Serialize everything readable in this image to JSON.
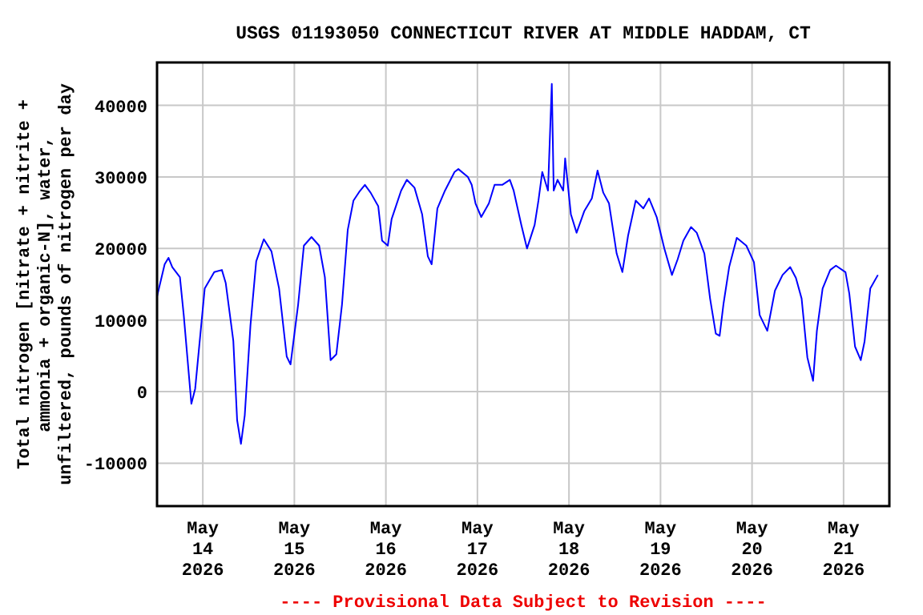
{
  "chart_data": {
    "type": "line",
    "title": "USGS 01193050 CONNECTICUT RIVER AT MIDDLE HADDAM, CT",
    "ylabel": "Total nitrogen [nitrate + nitrite +\nammonia + organic-N], water,\nunfiltered, pounds of nitrogen per day",
    "annotations": [
      "---- Provisional Data Subject to Revision ----"
    ],
    "x": [
      "2026-05-13T12:00",
      "2026-05-13T14:00",
      "2026-05-13T15:00",
      "2026-05-13T16:00",
      "2026-05-13T18:00",
      "2026-05-13T19:00",
      "2026-05-13T21:00",
      "2026-05-13T22:00",
      "2026-05-14T00:30",
      "2026-05-14T03:00",
      "2026-05-14T05:00",
      "2026-05-14T06:00",
      "2026-05-14T08:00",
      "2026-05-14T09:00",
      "2026-05-14T10:00",
      "2026-05-14T11:00",
      "2026-05-14T12:30",
      "2026-05-14T14:00",
      "2026-05-14T16:00",
      "2026-05-14T18:00",
      "2026-05-14T20:00",
      "2026-05-14T22:00",
      "2026-05-14T23:00",
      "2026-05-15T01:00",
      "2026-05-15T02:30",
      "2026-05-15T04:30",
      "2026-05-15T06:30",
      "2026-05-15T08:00",
      "2026-05-15T09:30",
      "2026-05-15T11:00",
      "2026-05-15T12:30",
      "2026-05-15T14:00",
      "2026-05-15T15:30",
      "2026-05-15T17:00",
      "2026-05-15T18:30",
      "2026-05-15T20:00",
      "2026-05-15T22:00",
      "2026-05-15T23:00",
      "2026-05-16T00:30",
      "2026-05-16T01:30",
      "2026-05-16T04:00",
      "2026-05-16T05:30",
      "2026-05-16T07:30",
      "2026-05-16T09:30",
      "2026-05-16T11:00",
      "2026-05-16T12:00",
      "2026-05-16T13:30",
      "2026-05-16T15:30",
      "2026-05-16T18:00",
      "2026-05-16T19:00",
      "2026-05-16T21:30",
      "2026-05-16T22:30",
      "2026-05-16T23:30",
      "2026-05-17T01:00",
      "2026-05-17T03:00",
      "2026-05-17T04:30",
      "2026-05-17T06:30",
      "2026-05-17T08:30",
      "2026-05-17T09:30",
      "2026-05-17T11:30",
      "2026-05-17T13:00",
      "2026-05-17T15:00",
      "2026-05-17T16:00",
      "2026-05-17T17:00",
      "2026-05-17T18:30",
      "2026-05-17T19:30",
      "2026-05-17T20:00",
      "2026-05-17T21:00",
      "2026-05-17T22:30",
      "2026-05-17T23:00",
      "2026-05-18T00:30",
      "2026-05-18T02:00",
      "2026-05-18T04:00",
      "2026-05-18T06:00",
      "2026-05-18T07:30",
      "2026-05-18T09:00",
      "2026-05-18T10:30",
      "2026-05-18T12:30",
      "2026-05-18T14:00",
      "2026-05-18T15:30",
      "2026-05-18T17:30",
      "2026-05-18T19:30",
      "2026-05-18T21:00",
      "2026-05-18T23:00",
      "2026-05-19T01:00",
      "2026-05-19T03:00",
      "2026-05-19T04:30",
      "2026-05-19T06:00",
      "2026-05-19T08:00",
      "2026-05-19T09:30",
      "2026-05-19T11:30",
      "2026-05-19T13:00",
      "2026-05-19T14:30",
      "2026-05-19T15:30",
      "2026-05-19T16:30",
      "2026-05-19T18:00",
      "2026-05-19T20:00",
      "2026-05-19T22:30",
      "2026-05-20T00:30",
      "2026-05-20T02:00",
      "2026-05-20T04:00",
      "2026-05-20T06:00",
      "2026-05-20T08:00",
      "2026-05-20T10:00",
      "2026-05-20T11:30",
      "2026-05-20T13:00",
      "2026-05-20T14:30",
      "2026-05-20T16:00",
      "2026-05-20T17:00",
      "2026-05-20T18:30",
      "2026-05-20T20:30",
      "2026-05-20T22:00",
      "2026-05-21T00:30",
      "2026-05-21T01:30",
      "2026-05-21T03:00",
      "2026-05-21T04:30",
      "2026-05-21T05:30",
      "2026-05-21T07:00",
      "2026-05-21T09:00"
    ],
    "series": [
      {
        "color": "#0000ff",
        "values": [
          13300,
          17800,
          18700,
          17400,
          16000,
          10700,
          -1700,
          400,
          14400,
          16700,
          17000,
          15200,
          7100,
          -4000,
          -7300,
          -3300,
          9300,
          18200,
          21300,
          19600,
          14400,
          4900,
          3800,
          12200,
          20400,
          21600,
          20400,
          16000,
          4400,
          5200,
          12200,
          22600,
          26700,
          27900,
          28900,
          27800,
          25900,
          21100,
          20400,
          24100,
          28100,
          29600,
          28500,
          24800,
          18900,
          17800,
          25600,
          28100,
          30700,
          31100,
          30000,
          28900,
          26300,
          24400,
          26300,
          28900,
          28900,
          29600,
          28100,
          23300,
          20000,
          23300,
          26700,
          30700,
          28100,
          43000,
          28100,
          29600,
          28100,
          32600,
          24800,
          22200,
          25200,
          27000,
          30900,
          27800,
          26300,
          19300,
          16700,
          21800,
          26700,
          25600,
          27000,
          24400,
          20000,
          16300,
          18500,
          21100,
          23000,
          22200,
          19300,
          13000,
          8100,
          7800,
          12200,
          17400,
          21500,
          20400,
          18100,
          10700,
          8500,
          14100,
          16300,
          17400,
          15900,
          13000,
          4800,
          1500,
          8500,
          14400,
          17000,
          17600,
          16700,
          13700,
          6300,
          4400,
          7000,
          14400,
          16300
        ]
      }
    ],
    "xlim": [
      "2026-05-13T12:00",
      "2026-05-21T12:00"
    ],
    "xticks": [
      {
        "value": "2026-05-14",
        "label": "May\n14\n2026"
      },
      {
        "value": "2026-05-15",
        "label": "May\n15\n2026"
      },
      {
        "value": "2026-05-16",
        "label": "May\n16\n2026"
      },
      {
        "value": "2026-05-17",
        "label": "May\n17\n2026"
      },
      {
        "value": "2026-05-18",
        "label": "May\n18\n2026"
      },
      {
        "value": "2026-05-19",
        "label": "May\n19\n2026"
      },
      {
        "value": "2026-05-20",
        "label": "May\n20\n2026"
      },
      {
        "value": "2026-05-21",
        "label": "May\n21\n2026"
      }
    ],
    "ylim": [
      -16000,
      46000
    ],
    "yticks": [
      -10000,
      0,
      10000,
      20000,
      30000,
      40000
    ],
    "grid": true
  }
}
